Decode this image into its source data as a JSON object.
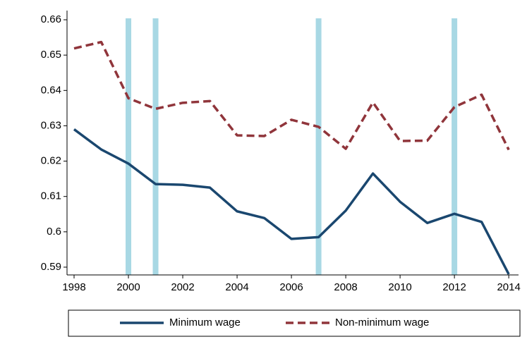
{
  "chart_data": {
    "type": "line",
    "x": [
      1998,
      1999,
      2000,
      2001,
      2002,
      2003,
      2004,
      2005,
      2006,
      2007,
      2008,
      2009,
      2010,
      2011,
      2012,
      2013,
      2014
    ],
    "series": [
      {
        "name": "Minimum wage",
        "color": "#1a476f",
        "dash": false,
        "values": [
          0.629,
          0.6233,
          0.6193,
          0.6135,
          0.6133,
          0.6125,
          0.6058,
          0.6039,
          0.598,
          0.5985,
          0.606,
          0.6165,
          0.6085,
          0.6025,
          0.6051,
          0.6028,
          0.588
        ]
      },
      {
        "name": "Non-minimum wage",
        "color": "#90353b",
        "dash": true,
        "values": [
          0.6519,
          0.6537,
          0.6378,
          0.6348,
          0.6365,
          0.637,
          0.6273,
          0.6271,
          0.6317,
          0.6297,
          0.6235,
          0.6366,
          0.6257,
          0.6258,
          0.6353,
          0.6388,
          0.6232
        ]
      }
    ],
    "bands": [
      2000,
      2001,
      2007,
      2012
    ],
    "band_color": "#a8d8e4",
    "xlim": [
      1997.74,
      2014.36
    ],
    "ylim": [
      0.5878,
      0.6626
    ],
    "xticks": [
      1998,
      2000,
      2002,
      2004,
      2006,
      2008,
      2010,
      2012,
      2014
    ],
    "yticks": [
      0.59,
      0.6,
      0.61,
      0.62,
      0.63,
      0.64,
      0.65,
      0.66
    ],
    "grid": false,
    "legend": "bottom"
  }
}
